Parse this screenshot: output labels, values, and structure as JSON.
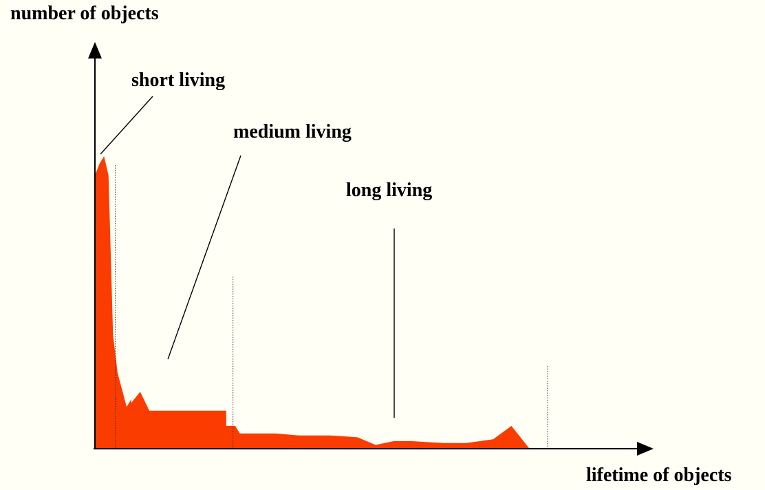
{
  "chart_data": {
    "type": "area",
    "title": "",
    "xlabel": "lifetime of objects",
    "ylabel": "number of objects",
    "xlim": [
      0,
      100
    ],
    "ylim": [
      0,
      100
    ],
    "grid": false,
    "legend": "none",
    "colors": {
      "area": "#fa3c00",
      "background": "#fffff6",
      "axis": "#000000"
    },
    "series": [
      {
        "x": [
          0,
          1,
          2,
          3,
          4,
          5,
          7,
          8,
          8,
          10,
          12,
          27,
          29,
          29,
          31,
          32,
          40,
          45,
          52,
          58,
          62,
          66,
          70,
          77,
          82,
          88,
          92,
          96,
          98,
          100
        ],
        "y": [
          72,
          75,
          77,
          72,
          30,
          20,
          11,
          13,
          12,
          15,
          10,
          10,
          10,
          6,
          6,
          4,
          4,
          3.5,
          3.5,
          3,
          1,
          2,
          2,
          1.5,
          1.5,
          2.5,
          6,
          0,
          0,
          0
        ]
      }
    ],
    "regions": [
      {
        "label": "short living",
        "x_end": 4.5
      },
      {
        "label": "medium living",
        "x_end": 30.5
      },
      {
        "label": "long living",
        "x_end": 100
      }
    ]
  }
}
